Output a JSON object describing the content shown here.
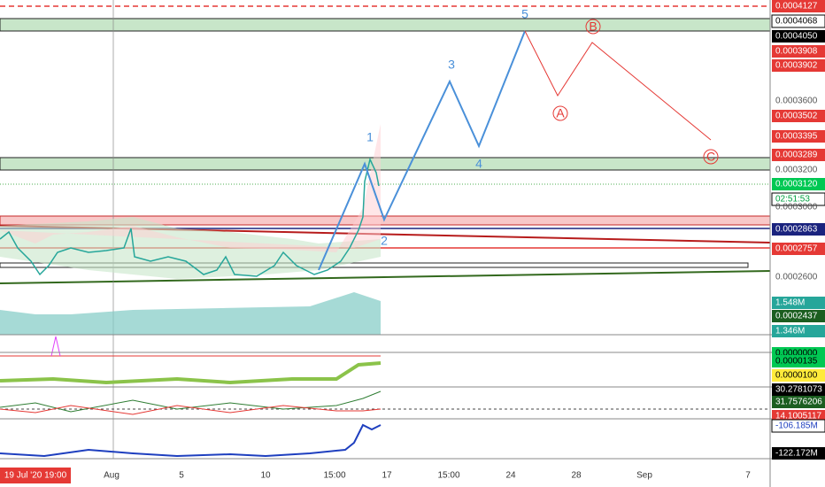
{
  "cursor_time": "19 Jul '20 19:00",
  "price_scale": [
    "0.0004127",
    "0.0004068",
    "0.0004050",
    "0.0003908",
    "0.0003902",
    "0.0003600",
    "0.0003502",
    "0.0003395",
    "0.0003289",
    "0.0003200",
    "0.0003120",
    "02:51:53",
    "0.0003000",
    "0.0002863",
    "0.0002757",
    "0.0002600",
    "1.548M",
    "0.0002437",
    "1.346M",
    "0.0000000",
    "0.0000135",
    "0.0000100",
    "30.2781073",
    "31.7576206",
    "14.1005117",
    "-106.185M",
    "-122.172M"
  ],
  "time_scale": [
    "Aug",
    "5",
    "10",
    "15:00",
    "17",
    "15:00",
    "24",
    "28",
    "Sep",
    "7"
  ],
  "waves": [
    "1",
    "2",
    "3",
    "4",
    "5",
    "A",
    "B",
    "C"
  ]
}
